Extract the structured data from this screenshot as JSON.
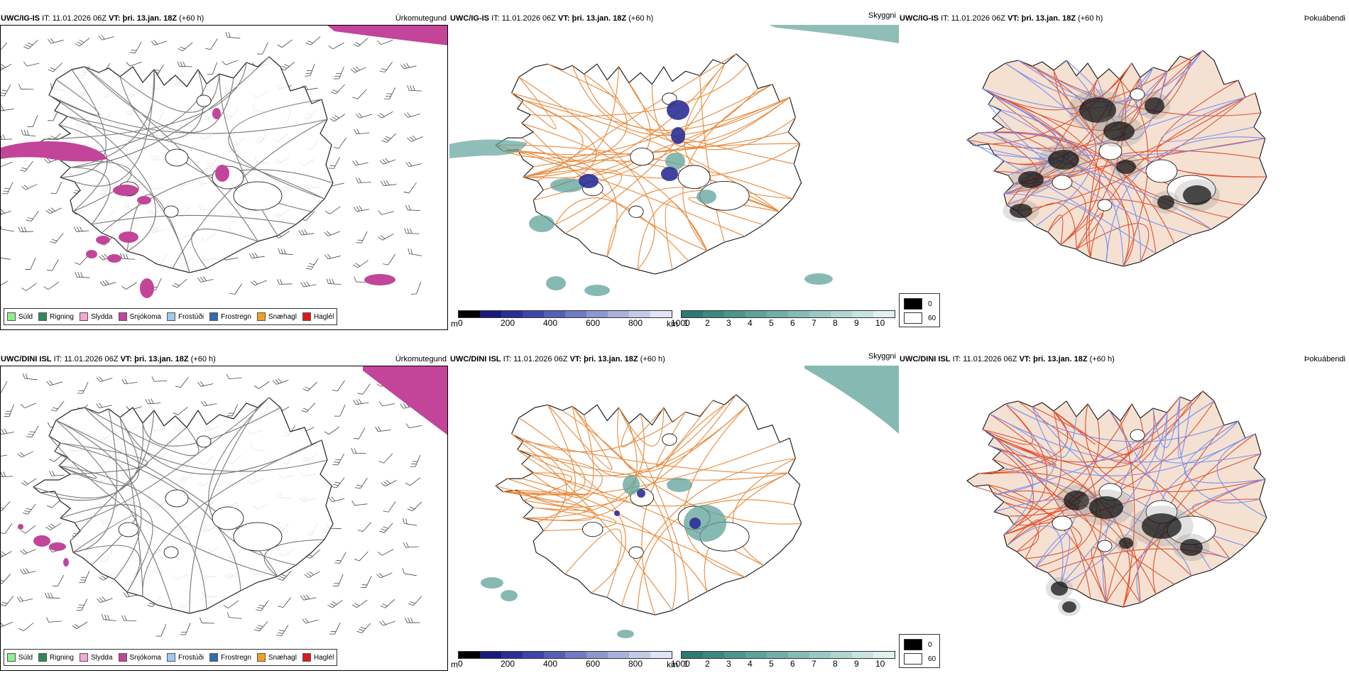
{
  "panels": [
    {
      "model": "UWC/IG-IS",
      "it_label": "IT:",
      "it_value": "11.01.2026 06Z",
      "vt_label": "VT:",
      "vt_value": "þri. 13.jan. 18Z",
      "lead": "(+60 h)",
      "corner": "Úrkomutegund"
    },
    {
      "model": "UWC/IG-IS",
      "it_label": "IT:",
      "it_value": "11.01.2026 06Z",
      "vt_label": "VT:",
      "vt_value": "þri. 13.jan. 18Z",
      "lead": "(+60 h)",
      "corner": "Skyggni"
    },
    {
      "model": "UWC/IG-IS",
      "it_label": "IT:",
      "it_value": "11.01.2026 06Z",
      "vt_label": "VT:",
      "vt_value": "þri. 13.jan. 18Z",
      "lead": "(+60 h)",
      "corner": "Þokuábendi"
    },
    {
      "model": "UWC/DINI ISL",
      "it_label": "IT:",
      "it_value": "11.01.2026 06Z",
      "vt_label": "VT:",
      "vt_value": "þri. 13.jan. 18Z",
      "lead": "(+60 h)",
      "corner": "Úrkomutegund"
    },
    {
      "model": "UWC/DINI ISL",
      "it_label": "IT:",
      "it_value": "11.01.2026 06Z",
      "vt_label": "VT:",
      "vt_value": "þri. 13.jan. 18Z",
      "lead": "(+60 h)",
      "corner": "Skyggni"
    },
    {
      "model": "UWC/DINI ISL",
      "it_label": "IT:",
      "it_value": "11.01.2026 06Z",
      "vt_label": "VT:",
      "vt_value": "þri. 13.jan. 18Z",
      "lead": "(+60 h)",
      "corner": "Þokuábendi"
    }
  ],
  "precip_legend": [
    {
      "label": "Súld",
      "color": "#90ee90"
    },
    {
      "label": "Rigning",
      "color": "#2e8b57"
    },
    {
      "label": "Slydda",
      "color": "#f4a6d7"
    },
    {
      "label": "Snjókoma",
      "color": "#c2459a"
    },
    {
      "label": "Frostúði",
      "color": "#9ec9f0"
    },
    {
      "label": "Frostregn",
      "color": "#2f6db3"
    },
    {
      "label": "Snæhagl",
      "color": "#f0a020"
    },
    {
      "label": "Haglél",
      "color": "#e01818"
    }
  ],
  "cloud_base_legend": {
    "unit": "m",
    "ticks": [
      "0",
      "200",
      "400",
      "600",
      "800",
      "1000"
    ],
    "colors": [
      "#000000",
      "#1a1a7a",
      "#2b2f95",
      "#3d46a8",
      "#5560b5",
      "#6f7bc2",
      "#8c97cf",
      "#a8b1dc",
      "#c4cbe8",
      "#e0e4f4"
    ]
  },
  "visibility_legend": {
    "unit": "km",
    "ticks": [
      "1",
      "2",
      "3",
      "4",
      "5",
      "6",
      "7",
      "8",
      "9",
      "10"
    ],
    "colors": [
      "#2b7a73",
      "#3b8880",
      "#4d958d",
      "#5fa29a",
      "#72afa8",
      "#86bcb6",
      "#9bc9c4",
      "#b1d6d2",
      "#c8e3e0",
      "#dff0ee"
    ]
  },
  "fog_legend": [
    {
      "label": "0",
      "color": "#000000"
    },
    {
      "label": "60",
      "color": "#ffffff"
    }
  ],
  "map_style": {
    "land_fill_fog": "#f4e1d2",
    "roads": "#e8883a",
    "roads_fog": "#e05030",
    "rivers": "#7a8ef0",
    "snow_fill": "#c2459a",
    "cloud_base_dark": "#2b2f95",
    "visibility_fill": "#5fa29a"
  }
}
